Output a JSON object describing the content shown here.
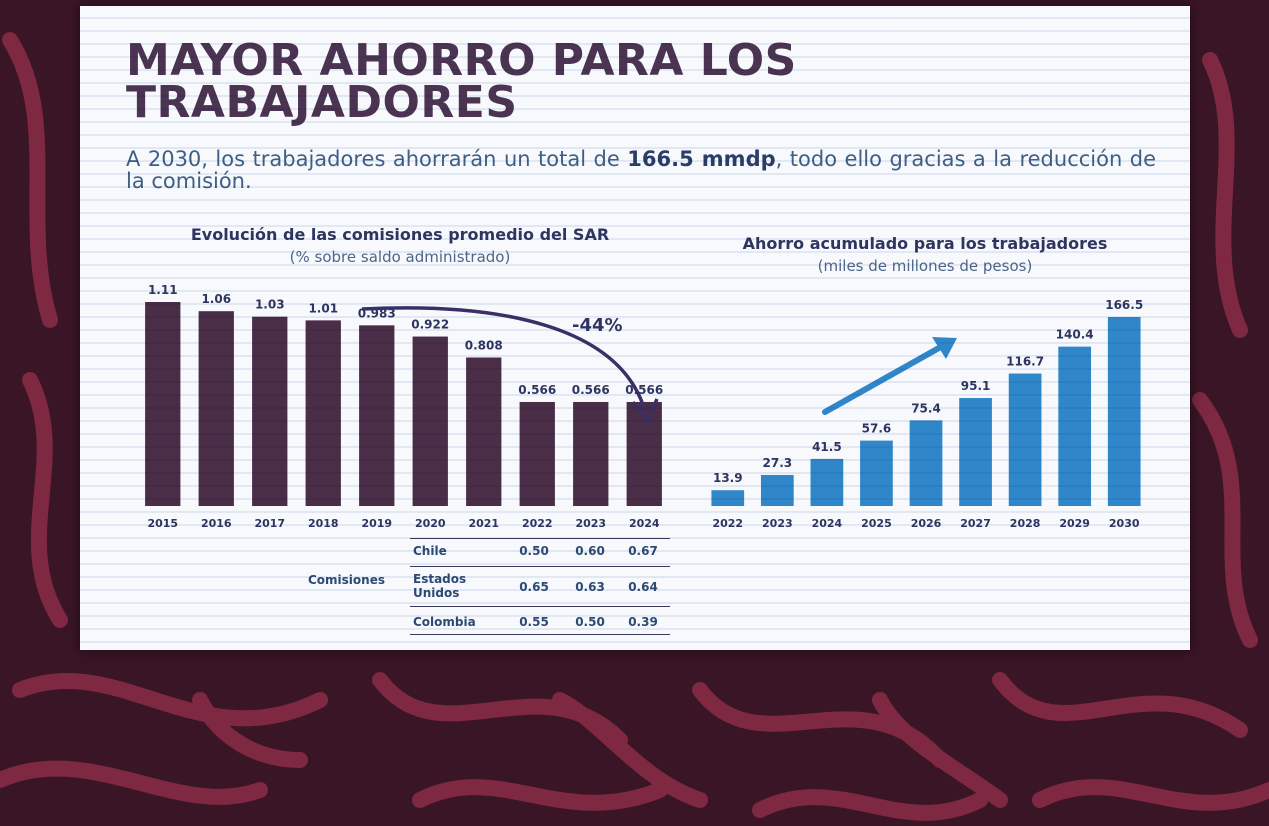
{
  "slide": {
    "title": "MAYOR AHORRO PARA LOS TRABAJADORES",
    "subtitle_before": "A 2030, los trabajadores ahorrarán un total de ",
    "subtitle_bold": "166.5 mmdp",
    "subtitle_after": ", todo ello gracias a la reducción de la comisión."
  },
  "colors": {
    "left_bars": "#4a2d47",
    "right_bars": "#2f86c9",
    "arrow": "#3a3066",
    "background": "#3a1526",
    "pattern": "#8b2c46"
  },
  "chart_data": [
    {
      "type": "bar",
      "title": "Evolución de las comisiones promedio del SAR",
      "subtitle": "(% sobre saldo administrado)",
      "categories": [
        "2015",
        "2016",
        "2017",
        "2018",
        "2019",
        "2020",
        "2021",
        "2022",
        "2023",
        "2024"
      ],
      "values": [
        1.11,
        1.06,
        1.03,
        1.01,
        0.983,
        0.922,
        0.808,
        0.566,
        0.566,
        0.566
      ],
      "value_labels": [
        "1.11",
        "1.06",
        "1.03",
        "1.01",
        "0.983",
        "0.922",
        "0.808",
        "0.566",
        "0.566",
        "0.566"
      ],
      "ylim": [
        0,
        1.2
      ],
      "annotation": "-44%",
      "grid": false,
      "legend": "none"
    },
    {
      "type": "bar",
      "title": "Ahorro acumulado para los trabajadores",
      "subtitle": "(miles de millones de pesos)",
      "categories": [
        "2022",
        "2023",
        "2024",
        "2025",
        "2026",
        "2027",
        "2028",
        "2029",
        "2030"
      ],
      "values": [
        13.9,
        27.3,
        41.5,
        57.6,
        75.4,
        95.1,
        116.7,
        140.4,
        166.5
      ],
      "value_labels": [
        "13.9",
        "27.3",
        "41.5",
        "57.6",
        "75.4",
        "95.1",
        "116.7",
        "140.4",
        "166.5"
      ],
      "ylim": [
        0,
        180
      ],
      "grid": false,
      "legend": "none"
    }
  ],
  "table": {
    "row_label": "Comisiones",
    "rows": [
      {
        "country": "Chile",
        "values": [
          "0.50",
          "0.60",
          "0.67"
        ]
      },
      {
        "country": "Estados Unidos",
        "values": [
          "0.65",
          "0.63",
          "0.64"
        ]
      },
      {
        "country": "Colombia",
        "values": [
          "0.55",
          "0.50",
          "0.39"
        ]
      }
    ]
  }
}
